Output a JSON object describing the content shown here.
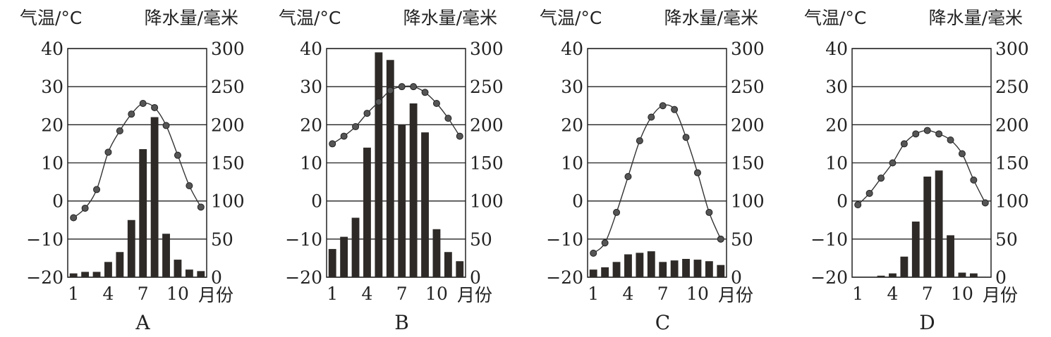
{
  "chart_data": [
    {
      "type": "bar+line",
      "panel_label": "A",
      "left_axis_label": "气温/°C",
      "right_axis_label": "降水量/毫米",
      "x_label": "月份",
      "x_ticks": [
        "1",
        "4",
        "7",
        "10"
      ],
      "months": [
        1,
        2,
        3,
        4,
        5,
        6,
        7,
        8,
        9,
        10,
        11,
        12
      ],
      "left_ticks": [
        "40",
        "30",
        "20",
        "10",
        "0",
        "−10",
        "−20"
      ],
      "right_ticks": [
        "300",
        "250",
        "200",
        "150",
        "100",
        "50",
        "0"
      ],
      "temp_ylim": [
        -20,
        40
      ],
      "precip_ylim": [
        0,
        300
      ],
      "grid": true,
      "temperature": [
        -4.4,
        -1.9,
        3,
        12.8,
        18.4,
        22.8,
        25.6,
        24.5,
        19.8,
        12,
        4,
        -1.6
      ],
      "precipitation": [
        5,
        7,
        7,
        20,
        33,
        75,
        168,
        210,
        57,
        23,
        10,
        8
      ]
    },
    {
      "type": "bar+line",
      "panel_label": "B",
      "left_axis_label": "气温/°C",
      "right_axis_label": "降水量/毫米",
      "x_label": "月份",
      "x_ticks": [
        "1",
        "4",
        "7",
        "10"
      ],
      "months": [
        1,
        2,
        3,
        4,
        5,
        6,
        7,
        8,
        9,
        10,
        11,
        12
      ],
      "left_ticks": [
        "40",
        "30",
        "20",
        "10",
        "0",
        "−10",
        "−20"
      ],
      "right_ticks": [
        "300",
        "250",
        "200",
        "150",
        "100",
        "50",
        "0"
      ],
      "temp_ylim": [
        -20,
        40
      ],
      "precip_ylim": [
        0,
        300
      ],
      "grid": true,
      "temperature": [
        15,
        17,
        19.5,
        23,
        26,
        29,
        30,
        30,
        28.5,
        25.6,
        21.7,
        17
      ],
      "precipitation": [
        37,
        53,
        78,
        170,
        295,
        285,
        200,
        228,
        190,
        63,
        33,
        21
      ]
    },
    {
      "type": "bar+line",
      "panel_label": "C",
      "left_axis_label": "气温/°C",
      "right_axis_label": "降水量/毫米",
      "x_label": "月份",
      "x_ticks": [
        "1",
        "4",
        "7",
        "10"
      ],
      "months": [
        1,
        2,
        3,
        4,
        5,
        6,
        7,
        8,
        9,
        10,
        11,
        12
      ],
      "left_ticks": [
        "40",
        "30",
        "20",
        "10",
        "0",
        "−10",
        "−20"
      ],
      "right_ticks": [
        "300",
        "250",
        "200",
        "150",
        "100",
        "50",
        "0"
      ],
      "temp_ylim": [
        -20,
        40
      ],
      "precip_ylim": [
        0,
        300
      ],
      "grid": true,
      "temperature": [
        -13.7,
        -11,
        -3,
        6.4,
        15.8,
        22,
        25,
        24,
        16.7,
        7.4,
        -3,
        -10
      ],
      "precipitation": [
        10,
        13,
        20,
        30,
        32,
        34,
        20,
        22,
        24,
        23,
        21,
        16
      ]
    },
    {
      "type": "bar+line",
      "panel_label": "D",
      "left_axis_label": "气温/°C",
      "right_axis_label": "降水量/毫米",
      "x_label": "月份",
      "x_ticks": [
        "1",
        "4",
        "7",
        "10"
      ],
      "months": [
        1,
        2,
        3,
        4,
        5,
        6,
        7,
        8,
        9,
        10,
        11,
        12
      ],
      "left_ticks": [
        "40",
        "30",
        "20",
        "10",
        "0",
        "−10",
        "−20"
      ],
      "right_ticks": [
        "300",
        "250",
        "200",
        "150",
        "100",
        "50",
        "0"
      ],
      "temp_ylim": [
        -20,
        40
      ],
      "precip_ylim": [
        0,
        300
      ],
      "grid": true,
      "temperature": [
        -1,
        2,
        6,
        10,
        15,
        17.6,
        18.5,
        17.6,
        16,
        12.4,
        5.5,
        -0.5
      ],
      "precipitation": [
        0,
        0,
        2,
        5,
        27,
        73,
        132,
        140,
        55,
        6,
        5,
        0
      ]
    }
  ],
  "colors": {
    "bar": "#2e2a28",
    "line": "#333333",
    "marker": "#555555",
    "grid": "#222222"
  }
}
